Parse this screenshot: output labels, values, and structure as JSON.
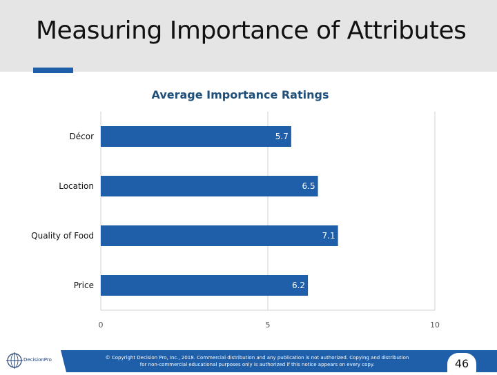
{
  "slide": {
    "title": "Measuring Importance of Attributes",
    "page_number": "46",
    "copyright": "© Copyright Decision Pro, Inc., 2018. Commercial distribution and any publication is not authorized. Copying and distribution for non-commercial educational purposes only is authorized if this notice appears on every copy.",
    "logo_text": "DecisionPro",
    "colors": {
      "header_bg": "#e5e5e5",
      "accent": "#1f5fa9",
      "bar": "#1f5fa9",
      "title_color": "#1f4e79"
    }
  },
  "chart_data": {
    "type": "bar",
    "orientation": "horizontal",
    "title": "Average Importance Ratings",
    "categories": [
      "Décor",
      "Location",
      "Quality of Food",
      "Price"
    ],
    "values": [
      5.7,
      6.5,
      7.1,
      6.2
    ],
    "value_labels": [
      "5.7",
      "6.5",
      "7.1",
      "6.2"
    ],
    "xlim": [
      0,
      10
    ],
    "xticks": [
      0,
      5,
      10
    ],
    "xtick_labels": [
      "0",
      "5",
      "10"
    ],
    "xlabel": "",
    "ylabel": "",
    "grid": true,
    "legend": "none"
  }
}
